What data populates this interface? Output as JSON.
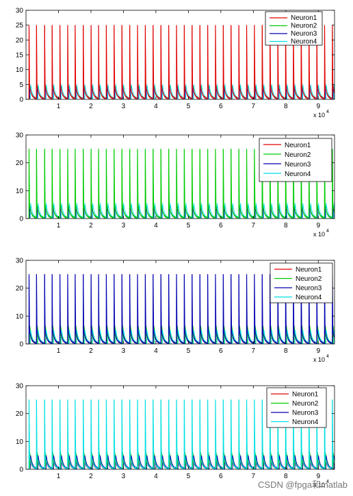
{
  "colors": {
    "Neuron1": "#e00000",
    "Neuron2": "#00cc00",
    "Neuron3": "#0000b0",
    "Neuron4": "#00e0e0"
  },
  "watermark": "CSDN @fpga和matlab",
  "chart_data": [
    {
      "type": "line",
      "panel": 1,
      "dominant_series": "Neuron1",
      "spike_value": 25,
      "spike_times": [
        900,
        3200,
        5700,
        8000,
        10400,
        12800,
        15100,
        17600,
        20000,
        22300,
        24700,
        27100,
        29500,
        31900,
        34300,
        36700,
        39100,
        41500,
        43900,
        46300,
        48700,
        51100,
        53500,
        55900,
        58300,
        60700,
        63100,
        65500,
        67900,
        70300,
        72700,
        75100,
        77500,
        79900,
        82300,
        84700,
        87100,
        89500,
        91900,
        94300
      ],
      "small_spike_max": [
        {
          "name": "Neuron1",
          "value": 7.5
        },
        {
          "name": "Neuron2",
          "value": 6.5
        },
        {
          "name": "Neuron3",
          "value": 4.5
        },
        {
          "name": "Neuron4",
          "value": 5.0
        }
      ],
      "xlim": [
        0,
        95000
      ],
      "ylim": [
        0,
        30
      ],
      "x_ticks": [
        "1",
        "2",
        "3",
        "4",
        "5",
        "6",
        "7",
        "8",
        "9"
      ],
      "y_ticks": [
        "0",
        "5",
        "10",
        "15",
        "20",
        "25",
        "30"
      ],
      "x_exponent": {
        "base": "x 10",
        "power": "4"
      },
      "legend": [
        "Neuron1",
        "Neuron2",
        "Neuron3",
        "Neuron4"
      ],
      "legend_position": "top-right"
    },
    {
      "type": "line",
      "panel": 2,
      "dominant_series": "Neuron2",
      "spike_value": 25,
      "spike_times": [
        900,
        3200,
        5700,
        8000,
        10400,
        12800,
        15100,
        17600,
        20000,
        22300,
        24700,
        27100,
        29500,
        31900,
        34300,
        36700,
        39100,
        41500,
        43900,
        46300,
        48700,
        51100,
        53500,
        55900,
        58300,
        60700,
        63100,
        65500,
        67900,
        70300,
        72700,
        75100,
        77500,
        79900,
        82300,
        84700,
        87100,
        89500,
        91900,
        94300
      ],
      "small_spike_max": [
        {
          "name": "Neuron1",
          "value": 6.5
        },
        {
          "name": "Neuron2",
          "value": 7.0
        },
        {
          "name": "Neuron3",
          "value": 4.5
        },
        {
          "name": "Neuron4",
          "value": 5.5
        }
      ],
      "xlim": [
        0,
        95000
      ],
      "ylim": [
        0,
        30
      ],
      "x_ticks": [
        "1",
        "2",
        "3",
        "4",
        "5",
        "6",
        "7",
        "8",
        "9"
      ],
      "y_ticks": [
        "0",
        "10",
        "20",
        "30"
      ],
      "x_exponent": {
        "base": "x 10",
        "power": "4"
      },
      "legend": [
        "Neuron1",
        "Neuron2",
        "Neuron3",
        "Neuron4"
      ],
      "legend_position": "top-right"
    },
    {
      "type": "line",
      "panel": 3,
      "dominant_series": "Neuron3",
      "spike_value": 25,
      "spike_times": [
        900,
        3200,
        5700,
        8000,
        10400,
        12800,
        15100,
        17600,
        20000,
        22300,
        24700,
        27100,
        29500,
        31900,
        34300,
        36700,
        39100,
        41500,
        43900,
        46300,
        48700,
        51100,
        53500,
        55900,
        58300,
        60700,
        63100,
        65500,
        67900,
        70300,
        72700,
        75100,
        77500,
        79900,
        82300,
        84700,
        87100,
        89500,
        91900,
        94300
      ],
      "small_spike_max": [
        {
          "name": "Neuron1",
          "value": 6.0
        },
        {
          "name": "Neuron2",
          "value": 6.5
        },
        {
          "name": "Neuron3",
          "value": 7.0
        },
        {
          "name": "Neuron4",
          "value": 5.0
        }
      ],
      "xlim": [
        0,
        95000
      ],
      "ylim": [
        0,
        30
      ],
      "x_ticks": [
        "1",
        "2",
        "3",
        "4",
        "5",
        "6",
        "7",
        "8",
        "9"
      ],
      "y_ticks": [
        "0",
        "10",
        "20",
        "30"
      ],
      "x_exponent": {
        "base": "x 10",
        "power": "4"
      },
      "legend": [
        "Neuron1",
        "Neuron2",
        "Neuron3",
        "Neuron4"
      ],
      "legend_position": "top-right"
    },
    {
      "type": "line",
      "panel": 4,
      "dominant_series": "Neuron4",
      "spike_value": 25,
      "spike_times": [
        900,
        3200,
        5700,
        8000,
        10400,
        12800,
        15100,
        17600,
        20000,
        22300,
        24700,
        27100,
        29500,
        31900,
        34300,
        36700,
        39100,
        41500,
        43900,
        46300,
        48700,
        51100,
        53500,
        55900,
        58300,
        60700,
        63100,
        65500,
        67900,
        70300,
        72700,
        75100,
        77500,
        79900,
        82300,
        84700,
        87100,
        89500,
        91900,
        94300
      ],
      "small_spike_max": [
        {
          "name": "Neuron1",
          "value": 5.5
        },
        {
          "name": "Neuron2",
          "value": 6.0
        },
        {
          "name": "Neuron3",
          "value": 5.0
        },
        {
          "name": "Neuron4",
          "value": 6.5
        }
      ],
      "xlim": [
        0,
        95000
      ],
      "ylim": [
        0,
        30
      ],
      "x_ticks": [
        "1",
        "2",
        "3",
        "4",
        "5",
        "6",
        "7",
        "8",
        "9"
      ],
      "y_ticks": [
        "0",
        "10",
        "20",
        "30"
      ],
      "x_exponent": {
        "base": "x 10",
        "power": "4"
      },
      "legend": [
        "Neuron1",
        "Neuron2",
        "Neuron3",
        "Neuron4"
      ],
      "legend_position": "top-right"
    }
  ]
}
